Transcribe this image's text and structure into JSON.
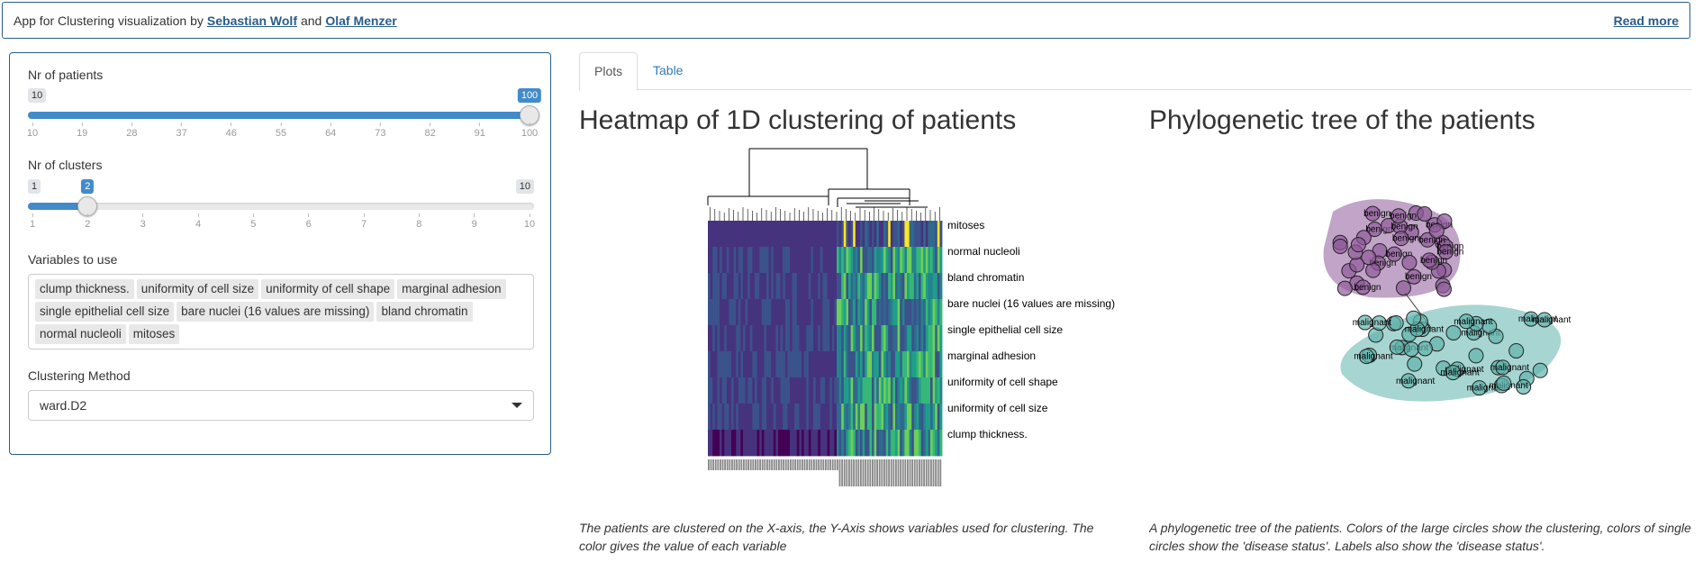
{
  "header": {
    "prefix": "App for Clustering visualization by",
    "author1": "Sebastian Wolf",
    "and": "and",
    "author2": "Olaf Menzer",
    "read_more": "Read more"
  },
  "sidebar": {
    "patients": {
      "label": "Nr of patients",
      "min": 10,
      "max": 100,
      "value": 100,
      "ticks": [
        "10",
        "19",
        "28",
        "37",
        "46",
        "55",
        "64",
        "73",
        "82",
        "91",
        "100"
      ]
    },
    "clusters": {
      "label": "Nr of clusters",
      "min": 1,
      "max": 10,
      "value": 2,
      "ticks": [
        "1",
        "2",
        "3",
        "4",
        "5",
        "6",
        "7",
        "8",
        "9",
        "10"
      ]
    },
    "variables_label": "Variables to use",
    "variables": [
      "clump thickness.",
      "uniformity of cell size",
      "uniformity of cell shape",
      "marginal adhesion",
      "single epithelial cell size",
      "bare nuclei (16 values are missing)",
      "bland chromatin",
      "normal nucleoli",
      "mitoses"
    ],
    "method_label": "Clustering Method",
    "method_value": "ward.D2"
  },
  "tabs": [
    {
      "label": "Plots",
      "active": true
    },
    {
      "label": "Table",
      "active": false
    }
  ],
  "heatmap": {
    "title": "Heatmap of 1D clustering of patients",
    "row_labels": [
      "mitoses",
      "normal nucleoli",
      "bland chromatin",
      "bare nuclei (16 values are missing)",
      "single epithelial cell size",
      "marginal adhesion",
      "uniformity of cell shape",
      "uniformity of cell size",
      "clump thickness."
    ],
    "caption": "The patients are clustered on the X-axis, the Y-Axis shows variables used for clustering. The color gives the value of each variable"
  },
  "tree": {
    "title": "Phylogenetic tree of the patients",
    "caption": "A phylogenetic tree of the patients. Colors of the large circles show the clustering, colors of single circles show the 'disease status'. Labels also show the 'disease status'.",
    "label_benign": "benign",
    "label_malignant": "malignant",
    "cluster_colors": [
      "#8e5a9a",
      "#5fb3ad"
    ]
  },
  "colors": {
    "accent": "#428bca",
    "border": "#2a5d8a"
  }
}
